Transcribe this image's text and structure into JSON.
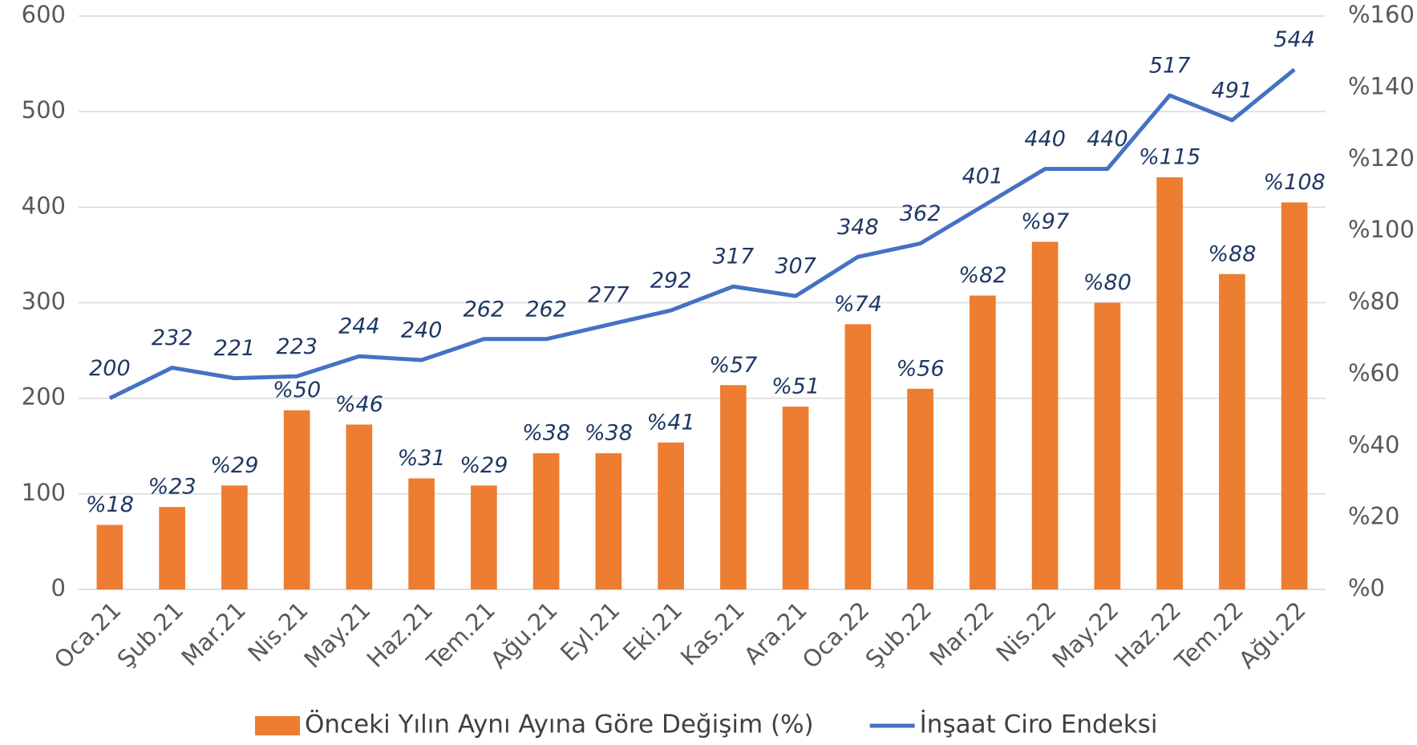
{
  "chart_data": {
    "type": "bar_line",
    "categories": [
      "Oca.21",
      "Şub.21",
      "Mar.21",
      "Nis.21",
      "May.21",
      "Haz.21",
      "Tem.21",
      "Ağu.21",
      "Eyl.21",
      "Eki.21",
      "Kas.21",
      "Ara.21",
      "Oca.22",
      "Şub.22",
      "Mar.22",
      "Nis.22",
      "May.22",
      "Haz.22",
      "Tem.22",
      "Ağu.22"
    ],
    "series": [
      {
        "name": "Önceki Yılın Aynı Ayına Göre Değişim (%)",
        "type": "bar",
        "axis": "y2",
        "color": "#ed7d31",
        "values": [
          18,
          23,
          29,
          50,
          46,
          31,
          29,
          38,
          38,
          41,
          57,
          51,
          74,
          56,
          82,
          97,
          80,
          115,
          88,
          108
        ],
        "value_labels": [
          "%18",
          "%23",
          "%29",
          "%50",
          "%46",
          "%31",
          "%29",
          "%38",
          "%38",
          "%41",
          "%57",
          "%51",
          "%74",
          "%56",
          "%82",
          "%97",
          "%80",
          "%115",
          "%88",
          "%108"
        ]
      },
      {
        "name": "İnşaat Ciro Endeksi",
        "type": "line",
        "axis": "y",
        "color": "#4472c4",
        "values": [
          200,
          232,
          221,
          223,
          244,
          240,
          262,
          262,
          277,
          292,
          317,
          307,
          348,
          362,
          401,
          440,
          440,
          517,
          491,
          544
        ]
      }
    ],
    "ylim": [
      0,
      600
    ],
    "yticks": [
      0,
      100,
      200,
      300,
      400,
      500,
      600
    ],
    "y2lim": [
      0,
      160
    ],
    "y2ticks": [
      {
        "value": 0,
        "label": "%0"
      },
      {
        "value": 20,
        "label": "%20"
      },
      {
        "value": 40,
        "label": "%40"
      },
      {
        "value": 60,
        "label": "%60"
      },
      {
        "value": 80,
        "label": "%80"
      },
      {
        "value": 100,
        "label": "%100"
      },
      {
        "value": 120,
        "label": "%120"
      },
      {
        "value": 140,
        "label": "%140"
      },
      {
        "value": 160,
        "label": "%160"
      }
    ],
    "grid": true,
    "legend": "bottom"
  }
}
